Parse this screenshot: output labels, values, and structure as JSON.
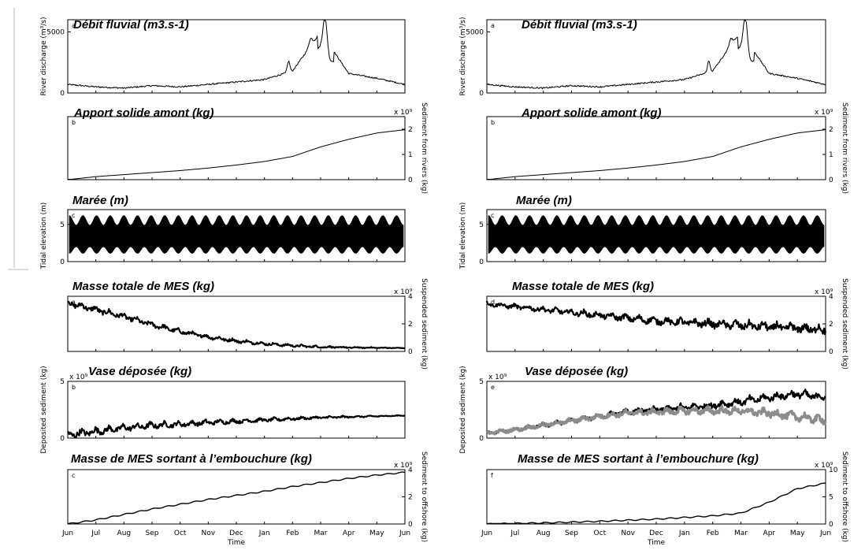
{
  "figure": {
    "columns": [
      {
        "panels": [
          {
            "title": "Débit fluvial  (m3.s-1)",
            "letter": "a",
            "ylabel": "River discharge (m³/s)",
            "ylabel_side": "left",
            "yticks": [
              "0",
              "5000"
            ],
            "multiplier": ""
          },
          {
            "title": "Apport  solide amont (kg)",
            "letter": "b",
            "ylabel": "Sediment from rivers (kg)",
            "ylabel_side": "right",
            "yticks": [
              "0",
              "1",
              "2"
            ],
            "multiplier": "x 10⁹"
          },
          {
            "title": "Marée (m)",
            "letter": "c",
            "ylabel": "Tidal elevation (m)",
            "ylabel_side": "left",
            "yticks": [
              "0",
              "5"
            ],
            "multiplier": ""
          },
          {
            "title": "Masse totale de MES (kg)",
            "letter": "a",
            "ylabel": "Suspended sediment (kg)",
            "ylabel_side": "right",
            "yticks": [
              "0",
              "2",
              "4"
            ],
            "multiplier": "x 10⁹"
          },
          {
            "title": "Vase déposée (kg)",
            "letter": "b",
            "ylabel": "Deposited sediment (kg)",
            "ylabel_side": "left",
            "yticks": [
              "0",
              "5"
            ],
            "multiplier": "x 10⁹"
          },
          {
            "title": "Masse de MES sortant à l’embouchure (kg)",
            "letter": "c",
            "ylabel": "Sediment to offshore (kg)",
            "ylabel_side": "right",
            "yticks": [
              "0",
              "2",
              "4"
            ],
            "multiplier": "x 10⁹"
          }
        ]
      },
      {
        "panels": [
          {
            "title": "Débit fluvial  (m3.s-1)",
            "letter": "a",
            "ylabel": "River discharge (m³/s)",
            "ylabel_side": "left",
            "yticks": [
              "0",
              "5000"
            ],
            "multiplier": ""
          },
          {
            "title": "Apport  solide amont (kg)",
            "letter": "b",
            "ylabel": "Sediment from rivers (kg)",
            "ylabel_side": "right",
            "yticks": [
              "0",
              "1",
              "2"
            ],
            "multiplier": "x 10⁹"
          },
          {
            "title": "Marée (m)",
            "letter": "c",
            "ylabel": "Tidal elevation (m)",
            "ylabel_side": "left",
            "yticks": [
              "0",
              "5"
            ],
            "multiplier": ""
          },
          {
            "title": "Masse totale de MES (kg)",
            "letter": "d",
            "ylabel": "Suspended sediment (kg)",
            "ylabel_side": "right",
            "yticks": [
              "0",
              "2",
              "4"
            ],
            "multiplier": "x 10⁹"
          },
          {
            "title": "Vase déposée (kg)",
            "letter": "e",
            "ylabel": "Deposited sediment (kg)",
            "ylabel_side": "left",
            "yticks": [
              "0",
              "5"
            ],
            "multiplier": "x 10⁹"
          },
          {
            "title": "Masse de MES sortant à l’embouchure (kg)",
            "letter": "f",
            "ylabel": "Sediment to offshore (kg)",
            "ylabel_side": "right",
            "yticks": [
              "0",
              "5",
              "10"
            ],
            "multiplier": "x 10⁹"
          }
        ]
      }
    ],
    "x_ticks": [
      "Jun",
      "Jul",
      "Aug",
      "Sep",
      "Oct",
      "Nov",
      "Dec",
      "Jan",
      "Feb",
      "Mar",
      "Apr",
      "May",
      "Jun"
    ],
    "x_label": "Time",
    "line_color": "#000000",
    "secondary_color": "#8c8c8c"
  },
  "chart_data": [
    {
      "type": "line",
      "column": 1,
      "panel": "a",
      "y_unit": "m³/s",
      "ylim": [
        0,
        6000
      ],
      "x": [
        "Jun",
        "Jul",
        "Aug",
        "Sep",
        "Oct",
        "Nov",
        "Dec",
        "Jan",
        "Feb",
        "Mar",
        "Apr",
        "May",
        "Jun"
      ],
      "series": [
        {
          "values": [
            700,
            500,
            400,
            600,
            500,
            700,
            900,
            1100,
            1800,
            5000,
            1600,
            1200,
            700
          ]
        }
      ]
    },
    {
      "type": "line",
      "column": 1,
      "panel": "b",
      "y_unit": "x 10⁹ kg",
      "ylim": [
        0,
        2.5
      ],
      "x": [
        "Jun",
        "Jul",
        "Aug",
        "Sep",
        "Oct",
        "Nov",
        "Dec",
        "Jan",
        "Feb",
        "Mar",
        "Apr",
        "May",
        "Jun"
      ],
      "series": [
        {
          "values": [
            0,
            0.12,
            0.2,
            0.28,
            0.36,
            0.46,
            0.58,
            0.72,
            0.92,
            1.3,
            1.6,
            1.85,
            1.98
          ]
        }
      ]
    },
    {
      "type": "area",
      "column": 1,
      "panel": "c",
      "y_unit": "m",
      "ylim": [
        0,
        7
      ],
      "x": [
        "Jun",
        "Jul",
        "Aug",
        "Sep",
        "Oct",
        "Nov",
        "Dec",
        "Jan",
        "Feb",
        "Mar",
        "Apr",
        "May",
        "Jun"
      ],
      "series": [
        {
          "name_hint": "tidal envelope",
          "range_min": [
            1,
            2
          ],
          "range_max": [
            5,
            6.5
          ]
        }
      ]
    },
    {
      "type": "line",
      "column": 1,
      "panel": "a",
      "y_unit": "x 10⁹ kg",
      "ylim": [
        0,
        4
      ],
      "x": [
        "Jun",
        "Jul",
        "Aug",
        "Sep",
        "Oct",
        "Nov",
        "Dec",
        "Jan",
        "Feb",
        "Mar",
        "Apr",
        "May",
        "Jun"
      ],
      "series": [
        {
          "values": [
            3.6,
            3.1,
            2.6,
            2.0,
            1.5,
            1.1,
            0.8,
            0.6,
            0.45,
            0.35,
            0.3,
            0.28,
            0.25
          ]
        }
      ]
    },
    {
      "type": "line",
      "column": 1,
      "panel": "b",
      "y_unit": "x 10⁹ kg",
      "ylim": [
        0,
        5
      ],
      "x": [
        "Jun",
        "Jul",
        "Aug",
        "Sep",
        "Oct",
        "Nov",
        "Dec",
        "Jan",
        "Feb",
        "Mar",
        "Apr",
        "May",
        "Jun"
      ],
      "series": [
        {
          "values": [
            0.4,
            0.7,
            1.0,
            1.2,
            1.3,
            1.45,
            1.55,
            1.65,
            1.75,
            1.85,
            1.9,
            1.95,
            2.0
          ]
        }
      ]
    },
    {
      "type": "line",
      "column": 1,
      "panel": "c",
      "y_unit": "x 10⁹ kg",
      "ylim": [
        0,
        4
      ],
      "x": [
        "Jun",
        "Jul",
        "Aug",
        "Sep",
        "Oct",
        "Nov",
        "Dec",
        "Jan",
        "Feb",
        "Mar",
        "Apr",
        "May",
        "Jun"
      ],
      "series": [
        {
          "values": [
            0,
            0.3,
            0.7,
            1.1,
            1.45,
            1.8,
            2.1,
            2.4,
            2.75,
            3.05,
            3.35,
            3.6,
            3.8
          ]
        }
      ]
    },
    {
      "type": "line",
      "column": 2,
      "panel": "a",
      "y_unit": "m³/s",
      "ylim": [
        0,
        6000
      ],
      "x": [
        "Jun",
        "Jul",
        "Aug",
        "Sep",
        "Oct",
        "Nov",
        "Dec",
        "Jan",
        "Feb",
        "Mar",
        "Apr",
        "May",
        "Jun"
      ],
      "series": [
        {
          "values": [
            700,
            500,
            400,
            600,
            500,
            700,
            900,
            1100,
            1800,
            5000,
            1600,
            1200,
            700
          ]
        }
      ]
    },
    {
      "type": "line",
      "column": 2,
      "panel": "b",
      "y_unit": "x 10⁹ kg",
      "ylim": [
        0,
        2.5
      ],
      "x": [
        "Jun",
        "Jul",
        "Aug",
        "Sep",
        "Oct",
        "Nov",
        "Dec",
        "Jan",
        "Feb",
        "Mar",
        "Apr",
        "May",
        "Jun"
      ],
      "series": [
        {
          "values": [
            0,
            0.12,
            0.2,
            0.28,
            0.36,
            0.46,
            0.58,
            0.72,
            0.92,
            1.3,
            1.6,
            1.85,
            1.98
          ]
        }
      ]
    },
    {
      "type": "area",
      "column": 2,
      "panel": "c",
      "y_unit": "m",
      "ylim": [
        0,
        7
      ],
      "x": [
        "Jun",
        "Jul",
        "Aug",
        "Sep",
        "Oct",
        "Nov",
        "Dec",
        "Jan",
        "Feb",
        "Mar",
        "Apr",
        "May",
        "Jun"
      ],
      "series": [
        {
          "name_hint": "tidal envelope",
          "range_min": [
            1,
            2
          ],
          "range_max": [
            5,
            6.5
          ]
        }
      ]
    },
    {
      "type": "line",
      "column": 2,
      "panel": "d",
      "y_unit": "x 10⁹ kg",
      "ylim": [
        0,
        4
      ],
      "x": [
        "Jun",
        "Jul",
        "Aug",
        "Sep",
        "Oct",
        "Nov",
        "Dec",
        "Jan",
        "Feb",
        "Mar",
        "Apr",
        "May",
        "Jun"
      ],
      "series": [
        {
          "values": [
            3.5,
            3.3,
            3.1,
            2.9,
            2.7,
            2.5,
            2.3,
            2.2,
            2.1,
            2.0,
            1.9,
            1.8,
            1.7
          ]
        }
      ]
    },
    {
      "type": "line",
      "column": 2,
      "panel": "e",
      "y_unit": "x 10⁹ kg",
      "ylim": [
        0,
        5
      ],
      "x": [
        "Jun",
        "Jul",
        "Aug",
        "Sep",
        "Oct",
        "Nov",
        "Dec",
        "Jan",
        "Feb",
        "Mar",
        "Apr",
        "May",
        "Jun"
      ],
      "series": [
        {
          "values": [
            0.5,
            0.8,
            1.2,
            1.6,
            2.0,
            2.4,
            2.6,
            2.8,
            3.0,
            3.3,
            3.7,
            4.0,
            3.7
          ]
        },
        {
          "values": [
            0.5,
            0.8,
            1.2,
            1.6,
            2.0,
            2.3,
            2.4,
            2.5,
            2.5,
            2.5,
            2.3,
            2.0,
            1.7
          ]
        }
      ]
    },
    {
      "type": "line",
      "column": 2,
      "panel": "f",
      "y_unit": "x 10⁹ kg",
      "ylim": [
        0,
        10
      ],
      "x": [
        "Jun",
        "Jul",
        "Aug",
        "Sep",
        "Oct",
        "Nov",
        "Dec",
        "Jan",
        "Feb",
        "Mar",
        "Apr",
        "May",
        "Jun"
      ],
      "series": [
        {
          "values": [
            0,
            0.1,
            0.2,
            0.35,
            0.5,
            0.7,
            0.9,
            1.2,
            1.5,
            2.0,
            4.0,
            6.5,
            7.5
          ]
        }
      ]
    }
  ]
}
